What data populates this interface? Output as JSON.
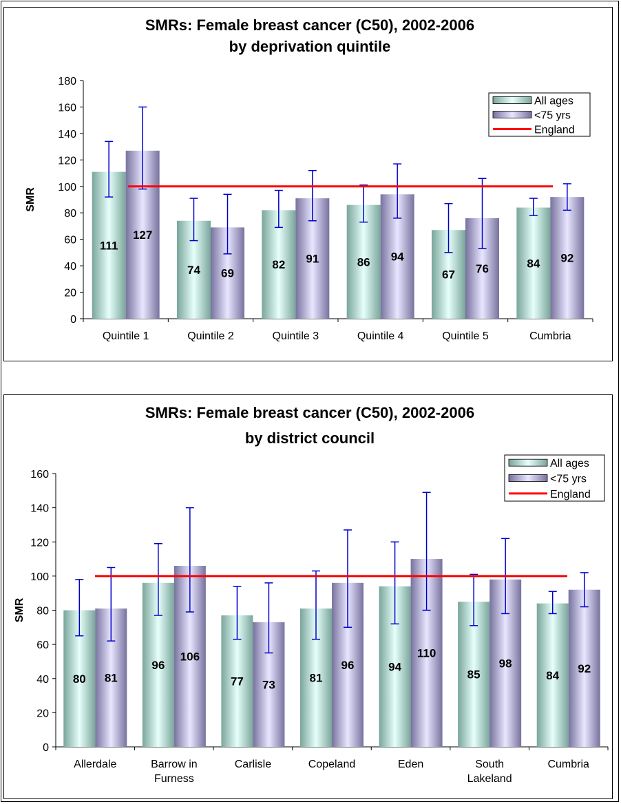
{
  "chart_data": [
    {
      "type": "bar",
      "title": "SMRs: Female breast cancer (C50), 2002-2006",
      "subtitle": "by deprivation quintile",
      "ylabel": "SMR",
      "xlabel": "",
      "ylim": [
        0,
        180
      ],
      "yticks": [
        "0",
        "20",
        "40",
        "60",
        "80",
        "100",
        "120",
        "140",
        "160",
        "180"
      ],
      "categories": [
        [
          "Quintile 1"
        ],
        [
          "Quintile 2"
        ],
        [
          "Quintile 3"
        ],
        [
          "Quintile 4"
        ],
        [
          "Quintile 5"
        ],
        [
          "Cumbria"
        ]
      ],
      "series": [
        {
          "name": "All ages",
          "values": [
            111,
            74,
            82,
            86,
            67,
            84
          ],
          "data_labels": [
            "111",
            "74",
            "82",
            "86",
            "67",
            "84"
          ],
          "ci_lower": [
            92,
            59,
            69,
            73,
            50,
            78
          ],
          "ci_upper": [
            134,
            91,
            97,
            101,
            87,
            91
          ]
        },
        {
          "name": "<75 yrs",
          "values": [
            127,
            69,
            91,
            94,
            76,
            92
          ],
          "data_labels": [
            "127",
            "69",
            "91",
            "94",
            "76",
            "92"
          ],
          "ci_lower": [
            98,
            49,
            74,
            76,
            53,
            82
          ],
          "ci_upper": [
            160,
            94,
            112,
            117,
            106,
            102
          ]
        }
      ],
      "reference_line": {
        "name": "England",
        "value": 100,
        "color": "#ff0000"
      },
      "legend": {
        "placement": "top-right",
        "entries": [
          "All ages",
          "<75 yrs",
          "England"
        ]
      },
      "error_bar_color": "#0000cc",
      "series_colors": [
        "#8fbdb0",
        "#8e88b2"
      ],
      "grid": false
    },
    {
      "type": "bar",
      "title": "SMRs: Female breast cancer (C50), 2002-2006",
      "subtitle": "by district council",
      "ylabel": "SMR",
      "xlabel": "",
      "ylim": [
        0,
        160
      ],
      "yticks": [
        "0",
        "20",
        "40",
        "60",
        "80",
        "100",
        "120",
        "140",
        "160"
      ],
      "categories": [
        [
          "Allerdale"
        ],
        [
          "Barrow in",
          "Furness"
        ],
        [
          "Carlisle"
        ],
        [
          "Copeland"
        ],
        [
          "Eden"
        ],
        [
          "South",
          "Lakeland"
        ],
        [
          "Cumbria"
        ]
      ],
      "series": [
        {
          "name": "All ages",
          "values": [
            80,
            96,
            77,
            81,
            94,
            85,
            84
          ],
          "data_labels": [
            "80",
            "96",
            "77",
            "81",
            "94",
            "85",
            "84"
          ],
          "ci_lower": [
            65,
            77,
            63,
            63,
            72,
            71,
            78
          ],
          "ci_upper": [
            98,
            119,
            94,
            103,
            120,
            101,
            91
          ]
        },
        {
          "name": "<75 yrs",
          "values": [
            81,
            106,
            73,
            96,
            110,
            98,
            92
          ],
          "data_labels": [
            "81",
            "106",
            "73",
            "96",
            "110",
            "98",
            "92"
          ],
          "ci_lower": [
            62,
            79,
            55,
            70,
            80,
            78,
            82
          ],
          "ci_upper": [
            105,
            140,
            96,
            127,
            149,
            122,
            102
          ]
        }
      ],
      "reference_line": {
        "name": "England",
        "value": 100,
        "color": "#ff0000"
      },
      "legend": {
        "placement": "top-right",
        "entries": [
          "All ages",
          "<75 yrs",
          "England"
        ]
      },
      "error_bar_color": "#0000cc",
      "series_colors": [
        "#8fbdb0",
        "#8e88b2"
      ],
      "grid": false
    }
  ]
}
